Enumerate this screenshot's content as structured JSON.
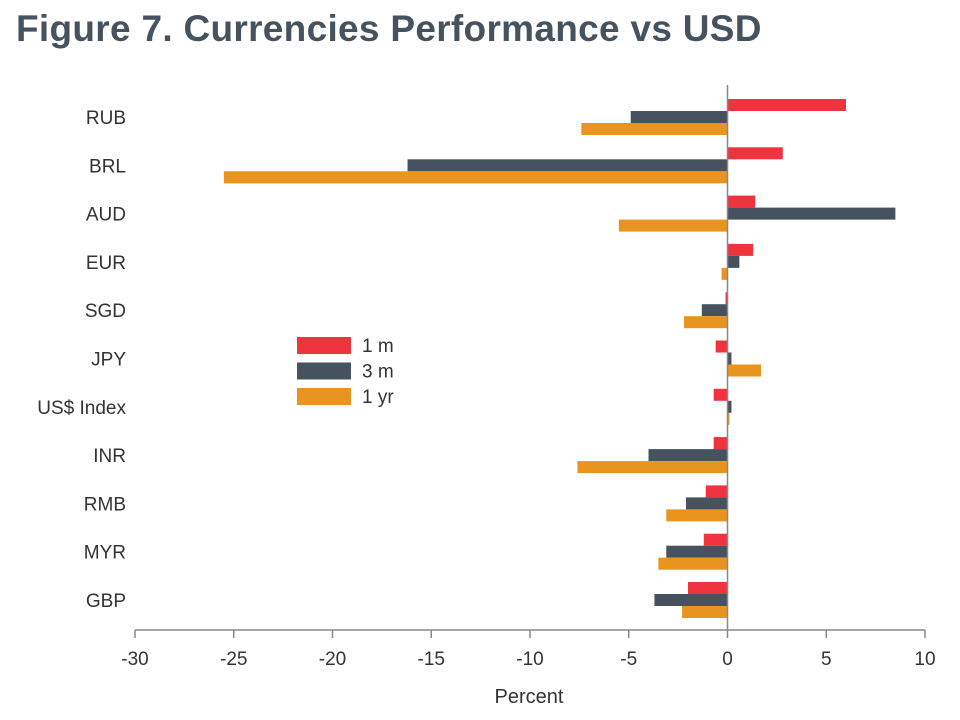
{
  "chart_data": {
    "type": "bar",
    "orientation": "horizontal",
    "title": "Figure 7. Currencies Performance vs USD",
    "xlabel": "Percent",
    "ylabel": "",
    "xlim": [
      -30,
      10
    ],
    "xticks": [
      -30,
      -25,
      -20,
      -15,
      -10,
      -5,
      0,
      5,
      10
    ],
    "categories": [
      "RUB",
      "BRL",
      "AUD",
      "EUR",
      "SGD",
      "JPY",
      "US$ Index",
      "INR",
      "RMB",
      "MYR",
      "GBP"
    ],
    "series": [
      {
        "name": "1 m",
        "color": "#f0343f",
        "values": [
          6.0,
          2.8,
          1.4,
          1.3,
          -0.1,
          -0.6,
          -0.7,
          -0.7,
          -1.1,
          -1.2,
          -2.0
        ]
      },
      {
        "name": "3 m",
        "color": "#46535e",
        "values": [
          -4.9,
          -16.2,
          8.5,
          0.6,
          -1.3,
          0.2,
          0.2,
          -4.0,
          -2.1,
          -3.1,
          -3.7
        ]
      },
      {
        "name": "1 yr",
        "color": "#e8941e",
        "values": [
          -7.4,
          -25.5,
          -5.5,
          -0.3,
          -2.2,
          1.7,
          0.1,
          -7.6,
          -3.1,
          -3.5,
          -2.3
        ]
      }
    ],
    "legend_position": "center-left",
    "grid": false
  }
}
